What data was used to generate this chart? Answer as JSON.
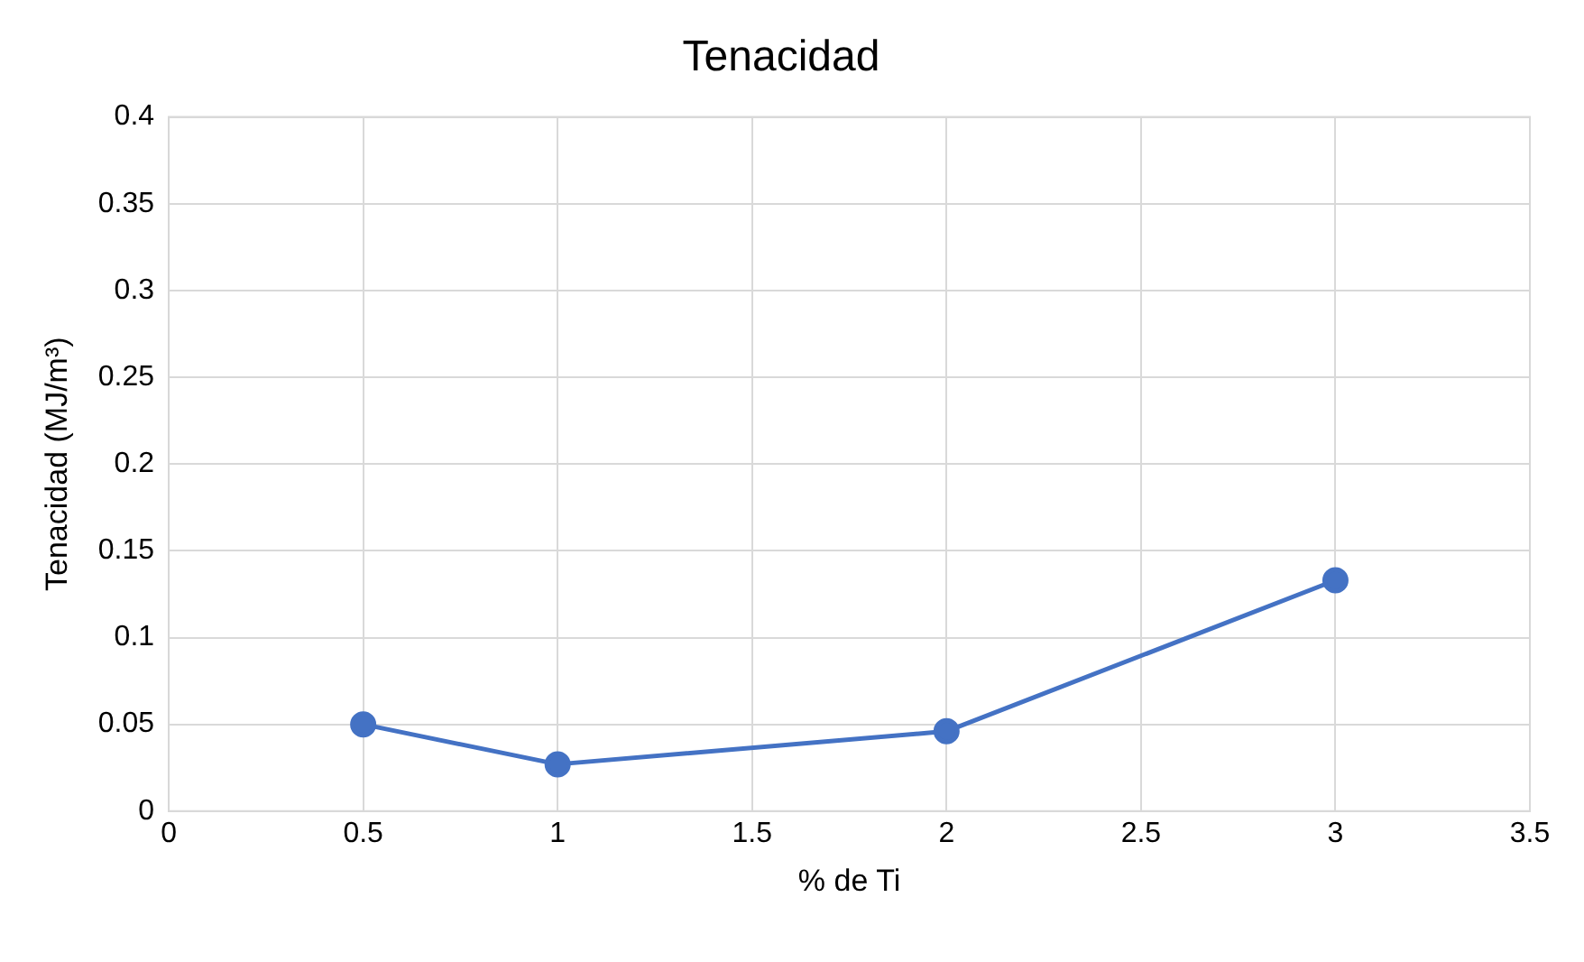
{
  "chart_data": {
    "type": "line",
    "title": "Tenacidad",
    "xlabel": "% de Ti",
    "ylabel": "Tenacidad (MJ/m³)",
    "x": [
      0.5,
      1,
      2,
      3
    ],
    "series": [
      {
        "color": "#4472c4",
        "values": [
          0.05,
          0.027,
          0.046,
          0.133
        ]
      }
    ],
    "xlim": [
      0,
      3.5
    ],
    "xticks": [
      0,
      0.5,
      1,
      1.5,
      2,
      2.5,
      3,
      3.5
    ],
    "ylim": [
      0,
      0.4
    ],
    "yticks": [
      0,
      0.05,
      0.1,
      0.15,
      0.2,
      0.25,
      0.3,
      0.35,
      0.4
    ],
    "grid": true,
    "legend": false,
    "marker": "circle",
    "line_style": "solid"
  }
}
